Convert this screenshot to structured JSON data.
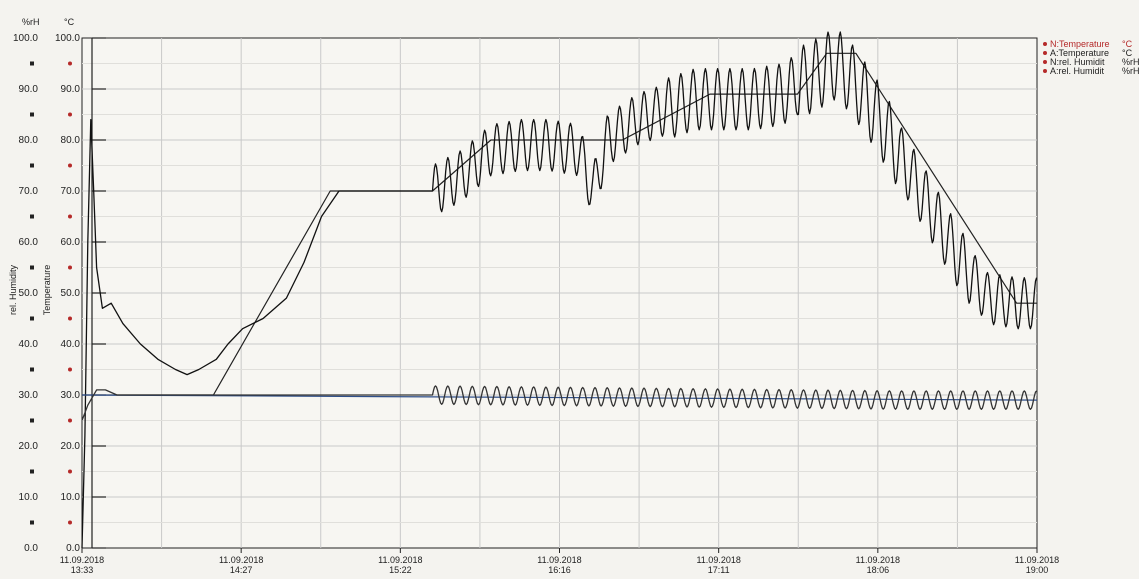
{
  "chart_data": {
    "type": "line",
    "left_unit": "%rH",
    "right_unit": "°C",
    "ylabel_left": "rel. Humidity",
    "ylabel_right": "Temperature",
    "ylim": [
      0,
      100
    ],
    "y_ticks_humidity": [
      "0.0",
      "10.0",
      "20.0",
      "30.0",
      "40.0",
      "50.0",
      "60.0",
      "70.0",
      "80.0",
      "90.0",
      "100.0"
    ],
    "y_ticks_temperature": [
      "0.0",
      "10.0",
      "20.0",
      "30.0",
      "40.0",
      "50.0",
      "60.0",
      "70.0",
      "80.0",
      "90.0",
      "100.0"
    ],
    "x_ticks": [
      {
        "date": "11.09.2018",
        "time": "13:33"
      },
      {
        "date": "11.09.2018",
        "time": "14:27"
      },
      {
        "date": "11.09.2018",
        "time": "15:22"
      },
      {
        "date": "11.09.2018",
        "time": "16:16"
      },
      {
        "date": "11.09.2018",
        "time": "17:11"
      },
      {
        "date": "11.09.2018",
        "time": "18:06"
      },
      {
        "date": "11.09.2018",
        "time": "19:00"
      }
    ],
    "xlim_minutes": [
      0,
      327
    ],
    "grid": true,
    "legend_position": "top-right",
    "legend": [
      {
        "label": "N:Temperature",
        "unit": "°C",
        "color": "#b52a2a"
      },
      {
        "label": "A:Temperature",
        "unit": "°C",
        "color": "#b52a2a"
      },
      {
        "label": "N:rel. Humidit",
        "unit": "%rH",
        "color": "#b52a2a"
      },
      {
        "label": "A:rel. Humidit",
        "unit": "%rH",
        "color": "#b52a2a"
      }
    ],
    "series": [
      {
        "id": "temp_setpoint",
        "color": "#222222",
        "points": [
          [
            0,
            30
          ],
          [
            15,
            30
          ],
          [
            45,
            30
          ],
          [
            85,
            70
          ],
          [
            120,
            70
          ],
          [
            140,
            80
          ],
          [
            185,
            80
          ],
          [
            215,
            89
          ],
          [
            245,
            89
          ],
          [
            255,
            97
          ],
          [
            265,
            97
          ],
          [
            320,
            48
          ],
          [
            327,
            48
          ]
        ]
      },
      {
        "id": "temp_actual",
        "color": "#111111",
        "wave": [
          [
            120,
            170,
            5
          ],
          [
            170,
            200,
            5
          ],
          [
            200,
            245,
            6
          ],
          [
            245,
            280,
            7
          ],
          [
            280,
            305,
            6
          ],
          [
            305,
            327,
            5
          ]
        ],
        "points": [
          [
            0,
            0
          ],
          [
            1,
            22
          ],
          [
            2,
            60
          ],
          [
            3,
            84
          ],
          [
            4,
            70
          ],
          [
            5,
            55
          ],
          [
            7,
            47
          ],
          [
            10,
            48
          ],
          [
            14,
            44
          ],
          [
            20,
            40
          ],
          [
            26,
            37
          ],
          [
            32,
            35
          ],
          [
            36,
            34
          ],
          [
            40,
            35
          ],
          [
            46,
            37
          ],
          [
            50,
            40
          ],
          [
            55,
            43
          ],
          [
            62,
            45
          ],
          [
            70,
            49
          ],
          [
            76,
            56
          ],
          [
            82,
            65
          ],
          [
            88,
            70
          ],
          [
            92,
            70
          ],
          [
            100,
            70
          ],
          [
            110,
            70
          ],
          [
            120,
            70
          ],
          [
            130,
            73
          ],
          [
            140,
            78
          ],
          [
            150,
            79
          ],
          [
            160,
            79
          ],
          [
            170,
            78
          ],
          [
            175,
            70
          ],
          [
            180,
            80
          ],
          [
            190,
            84
          ],
          [
            200,
            86
          ],
          [
            210,
            88
          ],
          [
            220,
            88
          ],
          [
            230,
            88
          ],
          [
            240,
            89
          ],
          [
            245,
            91
          ],
          [
            252,
            93
          ],
          [
            258,
            95
          ],
          [
            262,
            93
          ],
          [
            266,
            90
          ],
          [
            272,
            85
          ],
          [
            280,
            77
          ],
          [
            290,
            67
          ],
          [
            300,
            57
          ],
          [
            310,
            49
          ],
          [
            320,
            48
          ],
          [
            327,
            48
          ]
        ]
      },
      {
        "id": "humidity_setpoint",
        "color": "#2f4f8a",
        "points": [
          [
            0,
            30
          ],
          [
            327,
            29
          ]
        ]
      },
      {
        "id": "humidity_actual",
        "color": "#333333",
        "wave": [
          [
            120,
            327,
            1.8
          ]
        ],
        "points": [
          [
            0,
            25
          ],
          [
            2,
            28
          ],
          [
            5,
            31
          ],
          [
            8,
            31
          ],
          [
            12,
            30
          ],
          [
            20,
            30
          ],
          [
            60,
            30
          ],
          [
            120,
            30
          ],
          [
            200,
            29.5
          ],
          [
            280,
            29
          ],
          [
            327,
            29
          ]
        ]
      }
    ]
  }
}
